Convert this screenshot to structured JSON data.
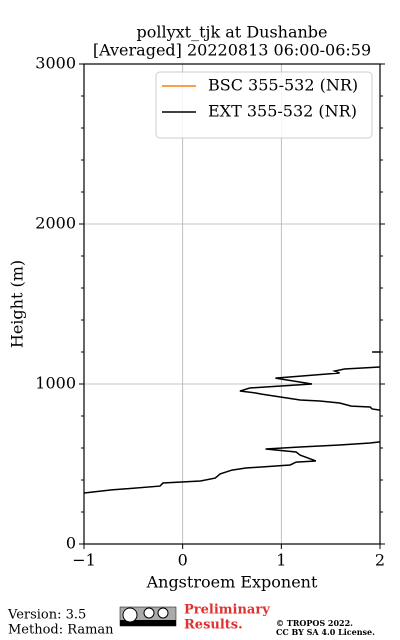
{
  "chart_data": {
    "type": "line",
    "title": [
      "pollyxt_tjk at Dushanbe",
      "[Averaged] 20220813 06:00-06:59"
    ],
    "xlabel": "Angstroem Exponent",
    "ylabel": "Height (m)",
    "xlim": [
      -1,
      2
    ],
    "xticks": [
      {
        "value": -1,
        "label": "−1"
      },
      0,
      1,
      2
    ],
    "ylim": [
      0,
      3000
    ],
    "yticks": [
      0,
      1000,
      2000,
      3000
    ],
    "yminorticks": [
      200,
      400,
      600,
      800,
      1200,
      1400,
      1600,
      1800,
      2200,
      2400,
      2600,
      2800
    ],
    "grid": true,
    "legend": "upper right",
    "series": [
      {
        "name": "BSC 355-532 (NR)",
        "color": "#ff7f0e",
        "x": [],
        "values": []
      },
      {
        "name": "EXT 355-532 (NR)",
        "color": "#000000",
        "x": [
          -1,
          -0.72,
          -0.23,
          -0.2,
          0.18,
          0.33,
          0.38,
          0.5,
          0.64,
          1.09,
          1.15,
          1.35,
          1.19,
          1.15,
          0.84,
          1.19,
          1.59,
          1.9,
          2.0,
          null,
          2.0,
          1.92,
          1.9,
          1.71,
          1.59,
          1.39,
          1.19,
          0.8,
          0.74,
          0.58,
          0.68,
          1.31,
          0.94,
          1.59,
          1.54,
          1.64,
          2.0,
          null,
          1.92,
          2.0
        ],
        "values": [
          319,
          338,
          362,
          381,
          394,
          412,
          438,
          462,
          475,
          494,
          512,
          519,
          556,
          575,
          594,
          606,
          619,
          631,
          638,
          null,
          837,
          844,
          856,
          862,
          881,
          894,
          900,
          937,
          944,
          956,
          975,
          1000,
          1037,
          1069,
          1081,
          1094,
          1106,
          null,
          1200,
          1200
        ]
      }
    ],
    "footer": {
      "version": "Version: 3.5",
      "method": "Method: Raman",
      "preliminary": [
        "Preliminary",
        "Results."
      ],
      "copyright": [
        "© TROPOS 2022.",
        "CC BY SA 4.0 License."
      ]
    }
  }
}
